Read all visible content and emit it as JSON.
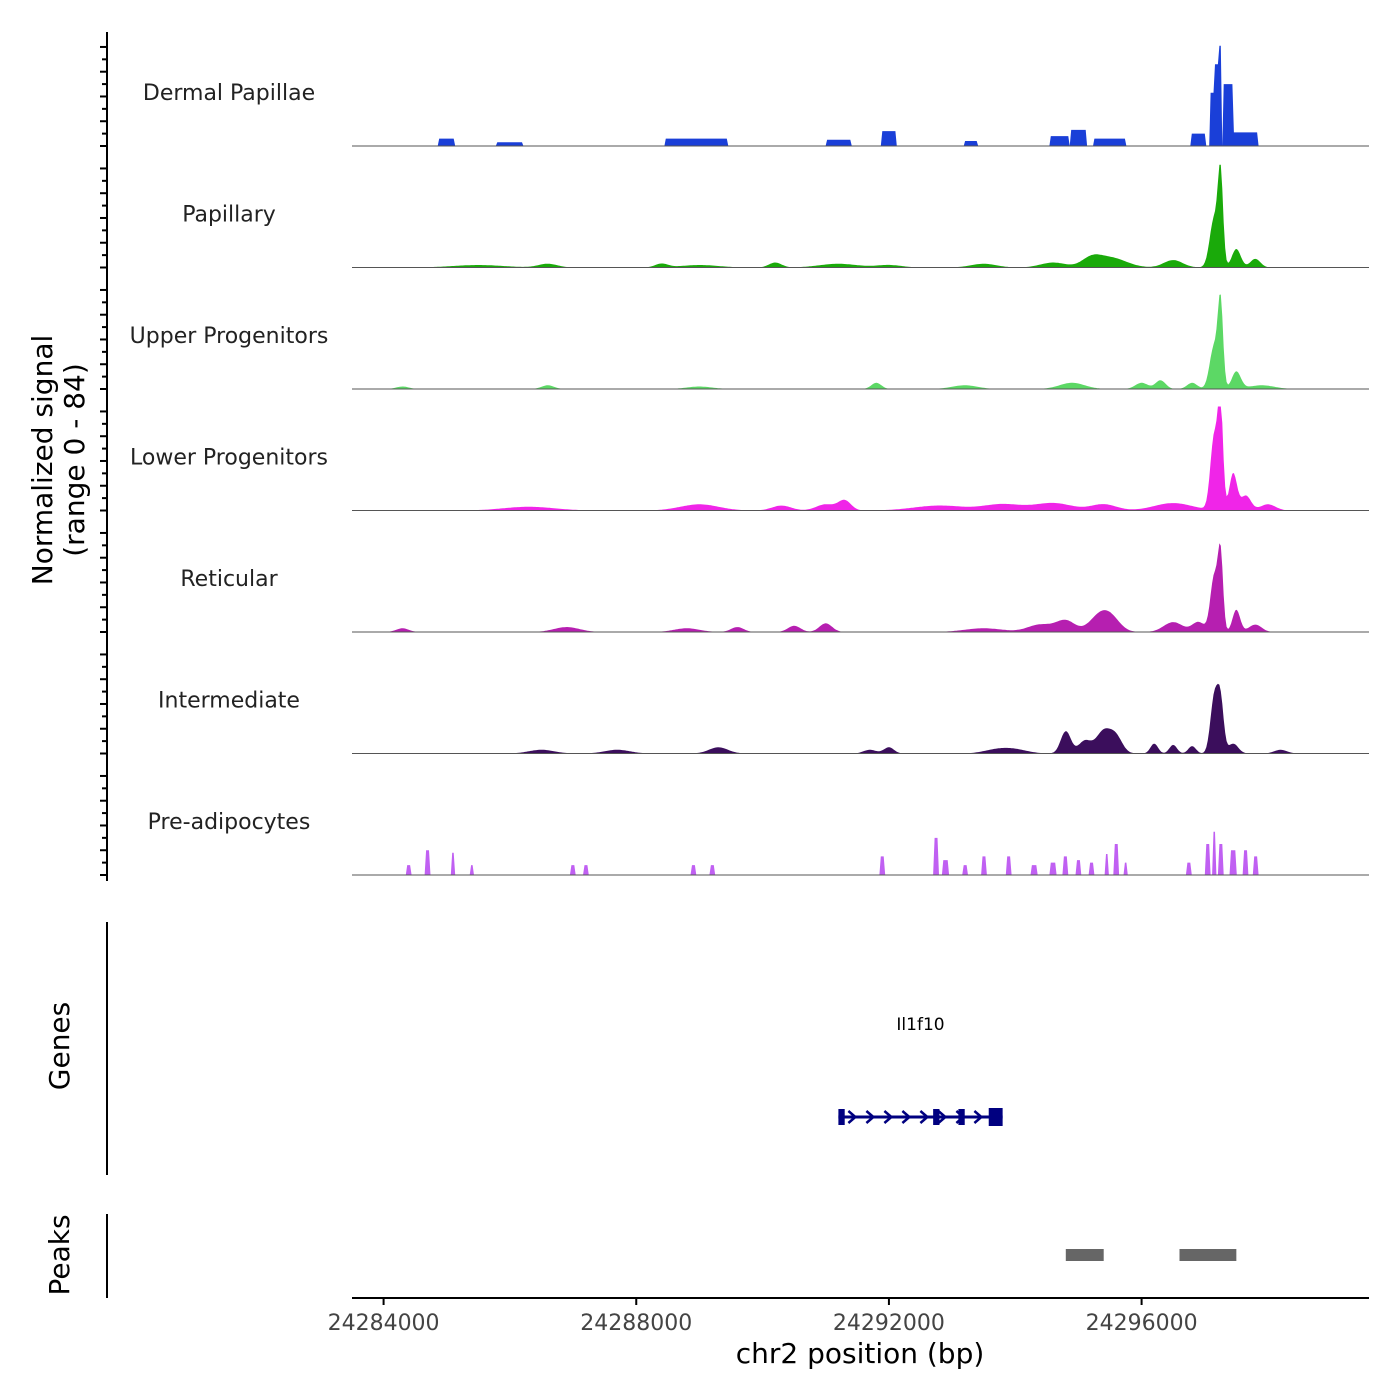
{
  "chart_data": {
    "type": "area",
    "title": "",
    "signal_axis_label": [
      "Normalized signal",
      "(range 0 - 84)"
    ],
    "signal_range": [
      0,
      84
    ],
    "genes_label": "Genes",
    "peaks_label": "Peaks",
    "xlabel": "chr2 position (bp)",
    "xlim": [
      24283500,
      24299600
    ],
    "x_ticks": [
      24284000,
      24288000,
      24292000,
      24296000
    ],
    "x_tick_labels": [
      "24284000",
      "24288000",
      "24292000",
      "24296000"
    ],
    "tracks": [
      {
        "name": "Dermal Papillae",
        "color": "#1a3fd8",
        "style": "blocky",
        "peaks": [
          [
            24285000,
            6,
            120
          ],
          [
            24286000,
            3,
            200
          ],
          [
            24288800,
            6,
            350
          ],
          [
            24289300,
            6,
            150
          ],
          [
            24291200,
            5,
            200
          ],
          [
            24292000,
            12,
            120
          ],
          [
            24293300,
            4,
            100
          ],
          [
            24294700,
            8,
            150
          ],
          [
            24295000,
            13,
            120
          ],
          [
            24295500,
            6,
            250
          ],
          [
            24296900,
            10,
            120
          ],
          [
            24297150,
            43,
            60
          ],
          [
            24297200,
            66,
            40
          ],
          [
            24297250,
            81,
            25
          ],
          [
            24297380,
            50,
            80
          ],
          [
            24297650,
            11,
            200
          ]
        ]
      },
      {
        "name": "Papillary",
        "color": "#1aaa0a",
        "style": "smooth",
        "peaks": [
          [
            24285500,
            2,
            400
          ],
          [
            24286600,
            3,
            150
          ],
          [
            24288400,
            3,
            100
          ],
          [
            24289000,
            2,
            300
          ],
          [
            24290200,
            4,
            100
          ],
          [
            24291200,
            3,
            300
          ],
          [
            24292000,
            2,
            200
          ],
          [
            24293500,
            3,
            200
          ],
          [
            24294600,
            4,
            200
          ],
          [
            24295200,
            6,
            150
          ],
          [
            24295500,
            8,
            250
          ],
          [
            24296500,
            6,
            150
          ],
          [
            24297150,
            40,
            70
          ],
          [
            24297250,
            70,
            40
          ],
          [
            24297500,
            15,
            70
          ],
          [
            24297800,
            7,
            80
          ]
        ]
      },
      {
        "name": "Upper Progenitors",
        "color": "#5cd865",
        "style": "smooth",
        "peaks": [
          [
            24284300,
            2,
            100
          ],
          [
            24286600,
            3,
            100
          ],
          [
            24289000,
            2,
            200
          ],
          [
            24291800,
            5,
            80
          ],
          [
            24293200,
            3,
            200
          ],
          [
            24294900,
            5,
            200
          ],
          [
            24296000,
            5,
            100
          ],
          [
            24296300,
            7,
            80
          ],
          [
            24296800,
            5,
            80
          ],
          [
            24297150,
            35,
            70
          ],
          [
            24297250,
            65,
            40
          ],
          [
            24297500,
            14,
            70
          ],
          [
            24297900,
            3,
            200
          ]
        ]
      },
      {
        "name": "Lower Progenitors",
        "color": "#f025e8",
        "style": "smooth",
        "peaks": [
          [
            24286300,
            3,
            400
          ],
          [
            24289000,
            5,
            300
          ],
          [
            24290300,
            4,
            150
          ],
          [
            24291000,
            5,
            150
          ],
          [
            24291300,
            8,
            100
          ],
          [
            24292800,
            4,
            400
          ],
          [
            24293800,
            5,
            300
          ],
          [
            24294600,
            6,
            300
          ],
          [
            24295400,
            5,
            200
          ],
          [
            24296500,
            6,
            300
          ],
          [
            24297150,
            60,
            60
          ],
          [
            24297250,
            80,
            40
          ],
          [
            24297450,
            30,
            60
          ],
          [
            24297650,
            12,
            80
          ],
          [
            24298000,
            5,
            120
          ]
        ]
      },
      {
        "name": "Reticular",
        "color": "#b61fb0",
        "style": "smooth",
        "peaks": [
          [
            24284300,
            3,
            100
          ],
          [
            24286900,
            4,
            200
          ],
          [
            24288800,
            3,
            200
          ],
          [
            24289600,
            4,
            100
          ],
          [
            24290500,
            5,
            100
          ],
          [
            24291000,
            7,
            100
          ],
          [
            24293500,
            3,
            300
          ],
          [
            24294400,
            6,
            200
          ],
          [
            24294800,
            9,
            150
          ],
          [
            24295300,
            10,
            150
          ],
          [
            24295500,
            12,
            150
          ],
          [
            24296500,
            8,
            150
          ],
          [
            24296900,
            8,
            100
          ],
          [
            24297150,
            45,
            60
          ],
          [
            24297250,
            60,
            40
          ],
          [
            24297500,
            18,
            60
          ],
          [
            24297800,
            6,
            100
          ]
        ]
      },
      {
        "name": "Intermediate",
        "color": "#3b0e5c",
        "style": "smooth",
        "peaks": [
          [
            24286500,
            3,
            200
          ],
          [
            24287700,
            3,
            200
          ],
          [
            24289300,
            5,
            150
          ],
          [
            24291700,
            3,
            100
          ],
          [
            24292000,
            5,
            80
          ],
          [
            24293700,
            3,
            200
          ],
          [
            24294000,
            3,
            200
          ],
          [
            24294800,
            18,
            80
          ],
          [
            24295100,
            10,
            100
          ],
          [
            24295400,
            18,
            120
          ],
          [
            24295600,
            12,
            100
          ],
          [
            24296200,
            8,
            60
          ],
          [
            24296500,
            7,
            60
          ],
          [
            24296800,
            6,
            60
          ],
          [
            24297150,
            45,
            60
          ],
          [
            24297250,
            40,
            50
          ],
          [
            24297450,
            8,
            80
          ],
          [
            24298200,
            3,
            100
          ]
        ]
      },
      {
        "name": "Pre-adipocytes",
        "color": "#c060f2",
        "style": "blocky",
        "peaks": [
          [
            24284400,
            8,
            40
          ],
          [
            24284700,
            20,
            40
          ],
          [
            24285100,
            18,
            30
          ],
          [
            24285400,
            8,
            30
          ],
          [
            24287000,
            8,
            30
          ],
          [
            24287200,
            8,
            30
          ],
          [
            24288900,
            8,
            30
          ],
          [
            24289200,
            8,
            30
          ],
          [
            24291900,
            15,
            40
          ],
          [
            24292750,
            30,
            30
          ],
          [
            24292900,
            12,
            40
          ],
          [
            24293200,
            8,
            30
          ],
          [
            24293500,
            15,
            40
          ],
          [
            24293900,
            15,
            40
          ],
          [
            24294300,
            8,
            40
          ],
          [
            24294600,
            10,
            40
          ],
          [
            24294800,
            15,
            30
          ],
          [
            24295000,
            12,
            30
          ],
          [
            24295200,
            10,
            30
          ],
          [
            24295450,
            17,
            30
          ],
          [
            24295600,
            25,
            30
          ],
          [
            24295750,
            10,
            30
          ],
          [
            24296750,
            10,
            40
          ],
          [
            24297050,
            25,
            40
          ],
          [
            24297150,
            35,
            30
          ],
          [
            24297250,
            25,
            40
          ],
          [
            24297450,
            20,
            40
          ],
          [
            24297650,
            20,
            30
          ],
          [
            24297800,
            15,
            30
          ]
        ]
      }
    ],
    "genes": [
      {
        "name": "Il1f10",
        "start": 24291200,
        "end": 24293800,
        "strand": "+",
        "exons": [
          [
            24291200,
            24291300
          ],
          [
            24292700,
            24292800
          ],
          [
            24293100,
            24293200
          ],
          [
            24293580,
            24293800
          ]
        ],
        "color": "#000080"
      }
    ],
    "peak_regions": [
      [
        24294800,
        24295400
      ],
      [
        24296600,
        24297500
      ]
    ],
    "peak_color": "#666666"
  }
}
